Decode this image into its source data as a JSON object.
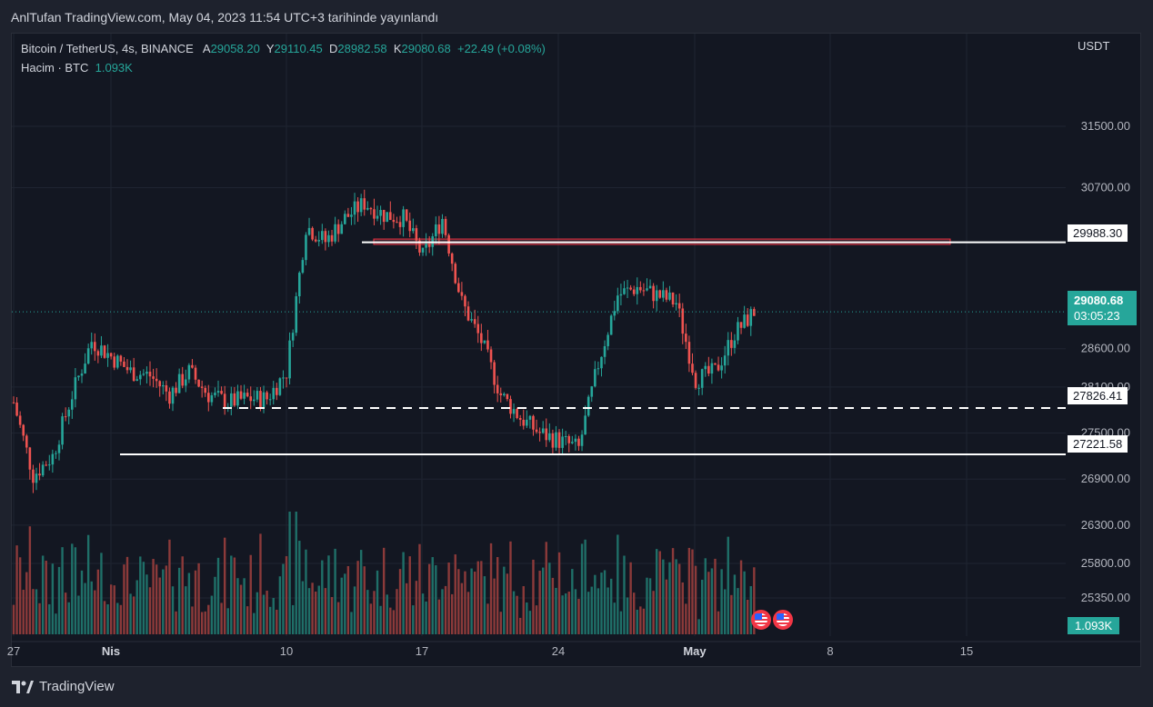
{
  "header": {
    "text": "AnlTufan TradingView.com, May 04, 2023 11:54 UTC+3 tarihinde yayınlandı"
  },
  "legend": {
    "symbol": "Bitcoin / TetherUS, 4s, BINANCE",
    "a_label": "A",
    "a_value": "29058.20",
    "y_label": "Y",
    "y_value": "29110.45",
    "d_label": "D",
    "d_value": "28982.58",
    "k_label": "K",
    "k_value": "29080.68",
    "change": "+22.49 (+0.08%)",
    "volume_label": "Hacim · BTC",
    "volume_value": "1.093K"
  },
  "currency": "USDT",
  "price_tags": {
    "resistance": "29988.30",
    "support_dashed": "27826.41",
    "support": "27221.58",
    "current_price": "29080.68",
    "countdown": "03:05:23",
    "volume": "1.093K"
  },
  "footer": {
    "brand": "TradingView"
  },
  "colors": {
    "up": "#26a69a",
    "down": "#ef5350",
    "background": "#131722",
    "zone": "#f23645"
  },
  "icons": [
    "us-flag-icon",
    "us-flag-icon"
  ],
  "chart_data": {
    "type": "candlestick",
    "title": "Bitcoin / TetherUS, 4s, BINANCE",
    "y_ticks": [
      "31500.00",
      "30700.00",
      "28600.00",
      "28100.00",
      "27500.00",
      "26900.00",
      "26300.00",
      "25800.00",
      "25350.00"
    ],
    "x_ticks": [
      "27",
      "Nis",
      "10",
      "17",
      "24",
      "May",
      "8",
      "15"
    ],
    "ylim": [
      25000,
      32500
    ],
    "annotations": {
      "resistance_line": 29988.3,
      "dashed_support_line": 27826.41,
      "support_line": 27221.58,
      "resistance_zone": [
        29960,
        30030
      ],
      "current_price": 29080.68
    },
    "close_path": [
      [
        "2023-03-27",
        27900
      ],
      [
        "2023-03-28",
        26950
      ],
      [
        "2023-03-29",
        27200
      ],
      [
        "2023-03-30",
        28000
      ],
      [
        "2023-03-31",
        28700
      ],
      [
        "2023-04-01",
        28500
      ],
      [
        "2023-04-02",
        28300
      ],
      [
        "2023-04-03",
        28250
      ],
      [
        "2023-04-04",
        28000
      ],
      [
        "2023-04-05",
        28300
      ],
      [
        "2023-04-06",
        28000
      ],
      [
        "2023-04-07",
        27900
      ],
      [
        "2023-04-08",
        27950
      ],
      [
        "2023-04-09",
        27950
      ],
      [
        "2023-04-10",
        28300
      ],
      [
        "2023-04-11",
        30200
      ],
      [
        "2023-04-12",
        30000
      ],
      [
        "2023-04-13",
        30300
      ],
      [
        "2023-04-14",
        30500
      ],
      [
        "2023-04-15",
        30350
      ],
      [
        "2023-04-16",
        30300
      ],
      [
        "2023-04-17",
        29800
      ],
      [
        "2023-04-18",
        30300
      ],
      [
        "2023-04-19",
        29200
      ],
      [
        "2023-04-20",
        28700
      ],
      [
        "2023-04-21",
        28000
      ],
      [
        "2023-04-22",
        27700
      ],
      [
        "2023-04-23",
        27500
      ],
      [
        "2023-04-24",
        27400
      ],
      [
        "2023-04-25",
        27300
      ],
      [
        "2023-04-26",
        28400
      ],
      [
        "2023-04-27",
        29300
      ],
      [
        "2023-04-28",
        29400
      ],
      [
        "2023-04-29",
        29300
      ],
      [
        "2023-04-30",
        29200
      ],
      [
        "2023-05-01",
        28200
      ],
      [
        "2023-05-02",
        28300
      ],
      [
        "2023-05-03",
        28800
      ],
      [
        "2023-05-04",
        29080
      ]
    ],
    "volume_last": "1.093K"
  }
}
